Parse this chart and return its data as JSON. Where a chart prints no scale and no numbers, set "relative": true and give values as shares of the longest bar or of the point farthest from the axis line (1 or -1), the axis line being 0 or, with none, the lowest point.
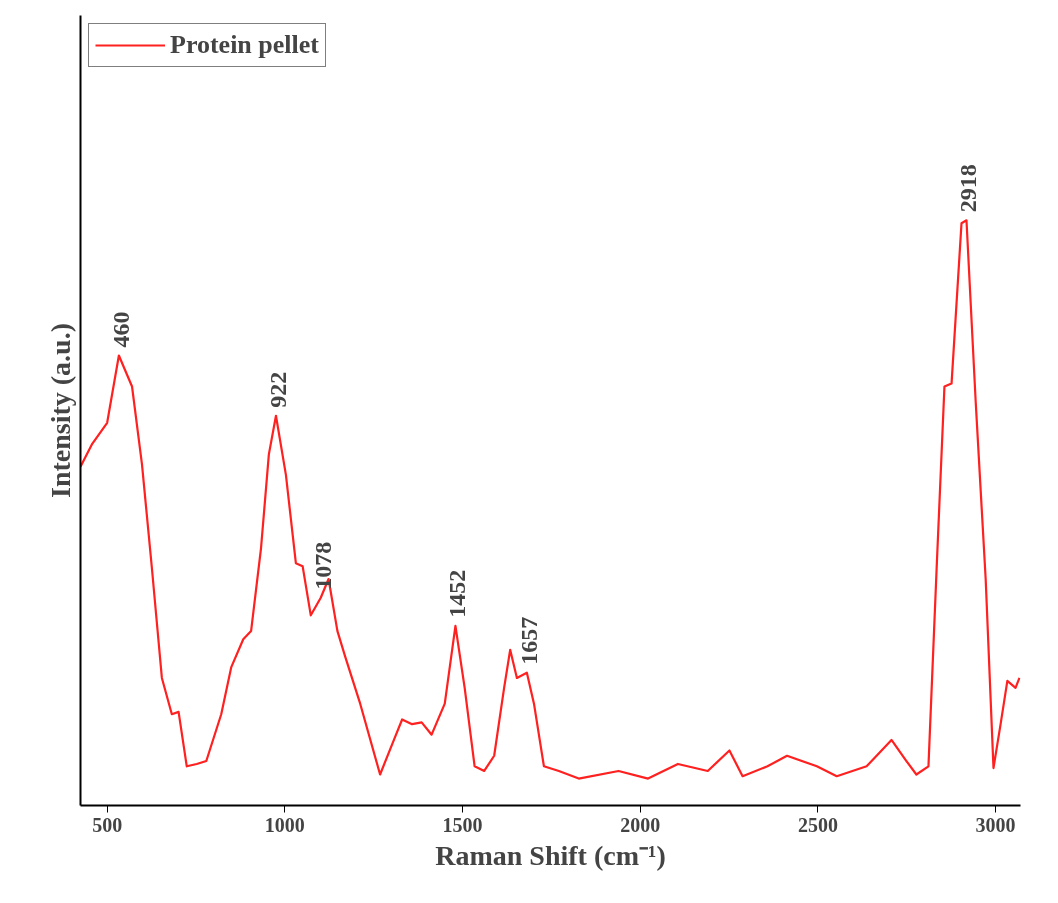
{
  "chart_data": {
    "type": "line",
    "relative": true,
    "xlabel": "Raman Shift (cm⁻¹)",
    "ylabel": "Intensity (a.u.)",
    "xlim": [
      425,
      3070
    ],
    "xticks": [
      500,
      1000,
      1500,
      2000,
      2500,
      3000
    ],
    "grid": false,
    "legend": "top left",
    "marker": "none",
    "line_style": "solid",
    "series": [
      {
        "name": "Protein pellet",
        "color": "#ff2020",
        "x": [
          425,
          458,
          500,
          533,
          570,
          598,
          626,
          654,
          682,
          701,
          724,
          752,
          779,
          821,
          849,
          883,
          905,
          933,
          955,
          975,
          1003,
          1031,
          1050,
          1073,
          1101,
          1123,
          1148,
          1170,
          1212,
          1268,
          1310,
          1330,
          1358,
          1385,
          1413,
          1450,
          1480,
          1506,
          1534,
          1561,
          1589,
          1617,
          1634,
          1653,
          1681,
          1701,
          1729,
          1771,
          1827,
          1939,
          2022,
          2106,
          2190,
          2251,
          2288,
          2358,
          2413,
          2497,
          2553,
          2637,
          2707,
          2749,
          2777,
          2811,
          2834,
          2856,
          2876,
          2904,
          2918,
          2944,
          2972,
          2994,
          3014,
          3033,
          3056,
          3067
        ],
        "values": [
          0.579,
          0.618,
          0.654,
          0.769,
          0.716,
          0.583,
          0.405,
          0.218,
          0.156,
          0.16,
          0.067,
          0.071,
          0.076,
          0.156,
          0.236,
          0.284,
          0.298,
          0.44,
          0.6,
          0.666,
          0.565,
          0.414,
          0.409,
          0.325,
          0.355,
          0.387,
          0.298,
          0.254,
          0.174,
          0.053,
          0.117,
          0.147,
          0.139,
          0.142,
          0.121,
          0.174,
          0.307,
          0.201,
          0.067,
          0.059,
          0.085,
          0.201,
          0.266,
          0.218,
          0.227,
          0.174,
          0.067,
          0.059,
          0.046,
          0.059,
          0.046,
          0.071,
          0.059,
          0.094,
          0.05,
          0.067,
          0.085,
          0.067,
          0.05,
          0.067,
          0.112,
          0.076,
          0.053,
          0.067,
          0.405,
          0.716,
          0.721,
          0.995,
          1.0,
          0.689,
          0.387,
          0.064,
          0.139,
          0.213,
          0.201,
          0.218
        ]
      }
    ],
    "annotations": [
      {
        "text": "460",
        "x": 533,
        "y": 0.769
      },
      {
        "text": "922",
        "x": 975,
        "y": 0.666
      },
      {
        "text": "1078",
        "x": 1101,
        "y": 0.355
      },
      {
        "text": "1452",
        "x": 1480,
        "y": 0.307
      },
      {
        "text": "1657",
        "x": 1681,
        "y": 0.227
      },
      {
        "text": "2918",
        "x": 2918,
        "y": 1.0
      }
    ]
  }
}
